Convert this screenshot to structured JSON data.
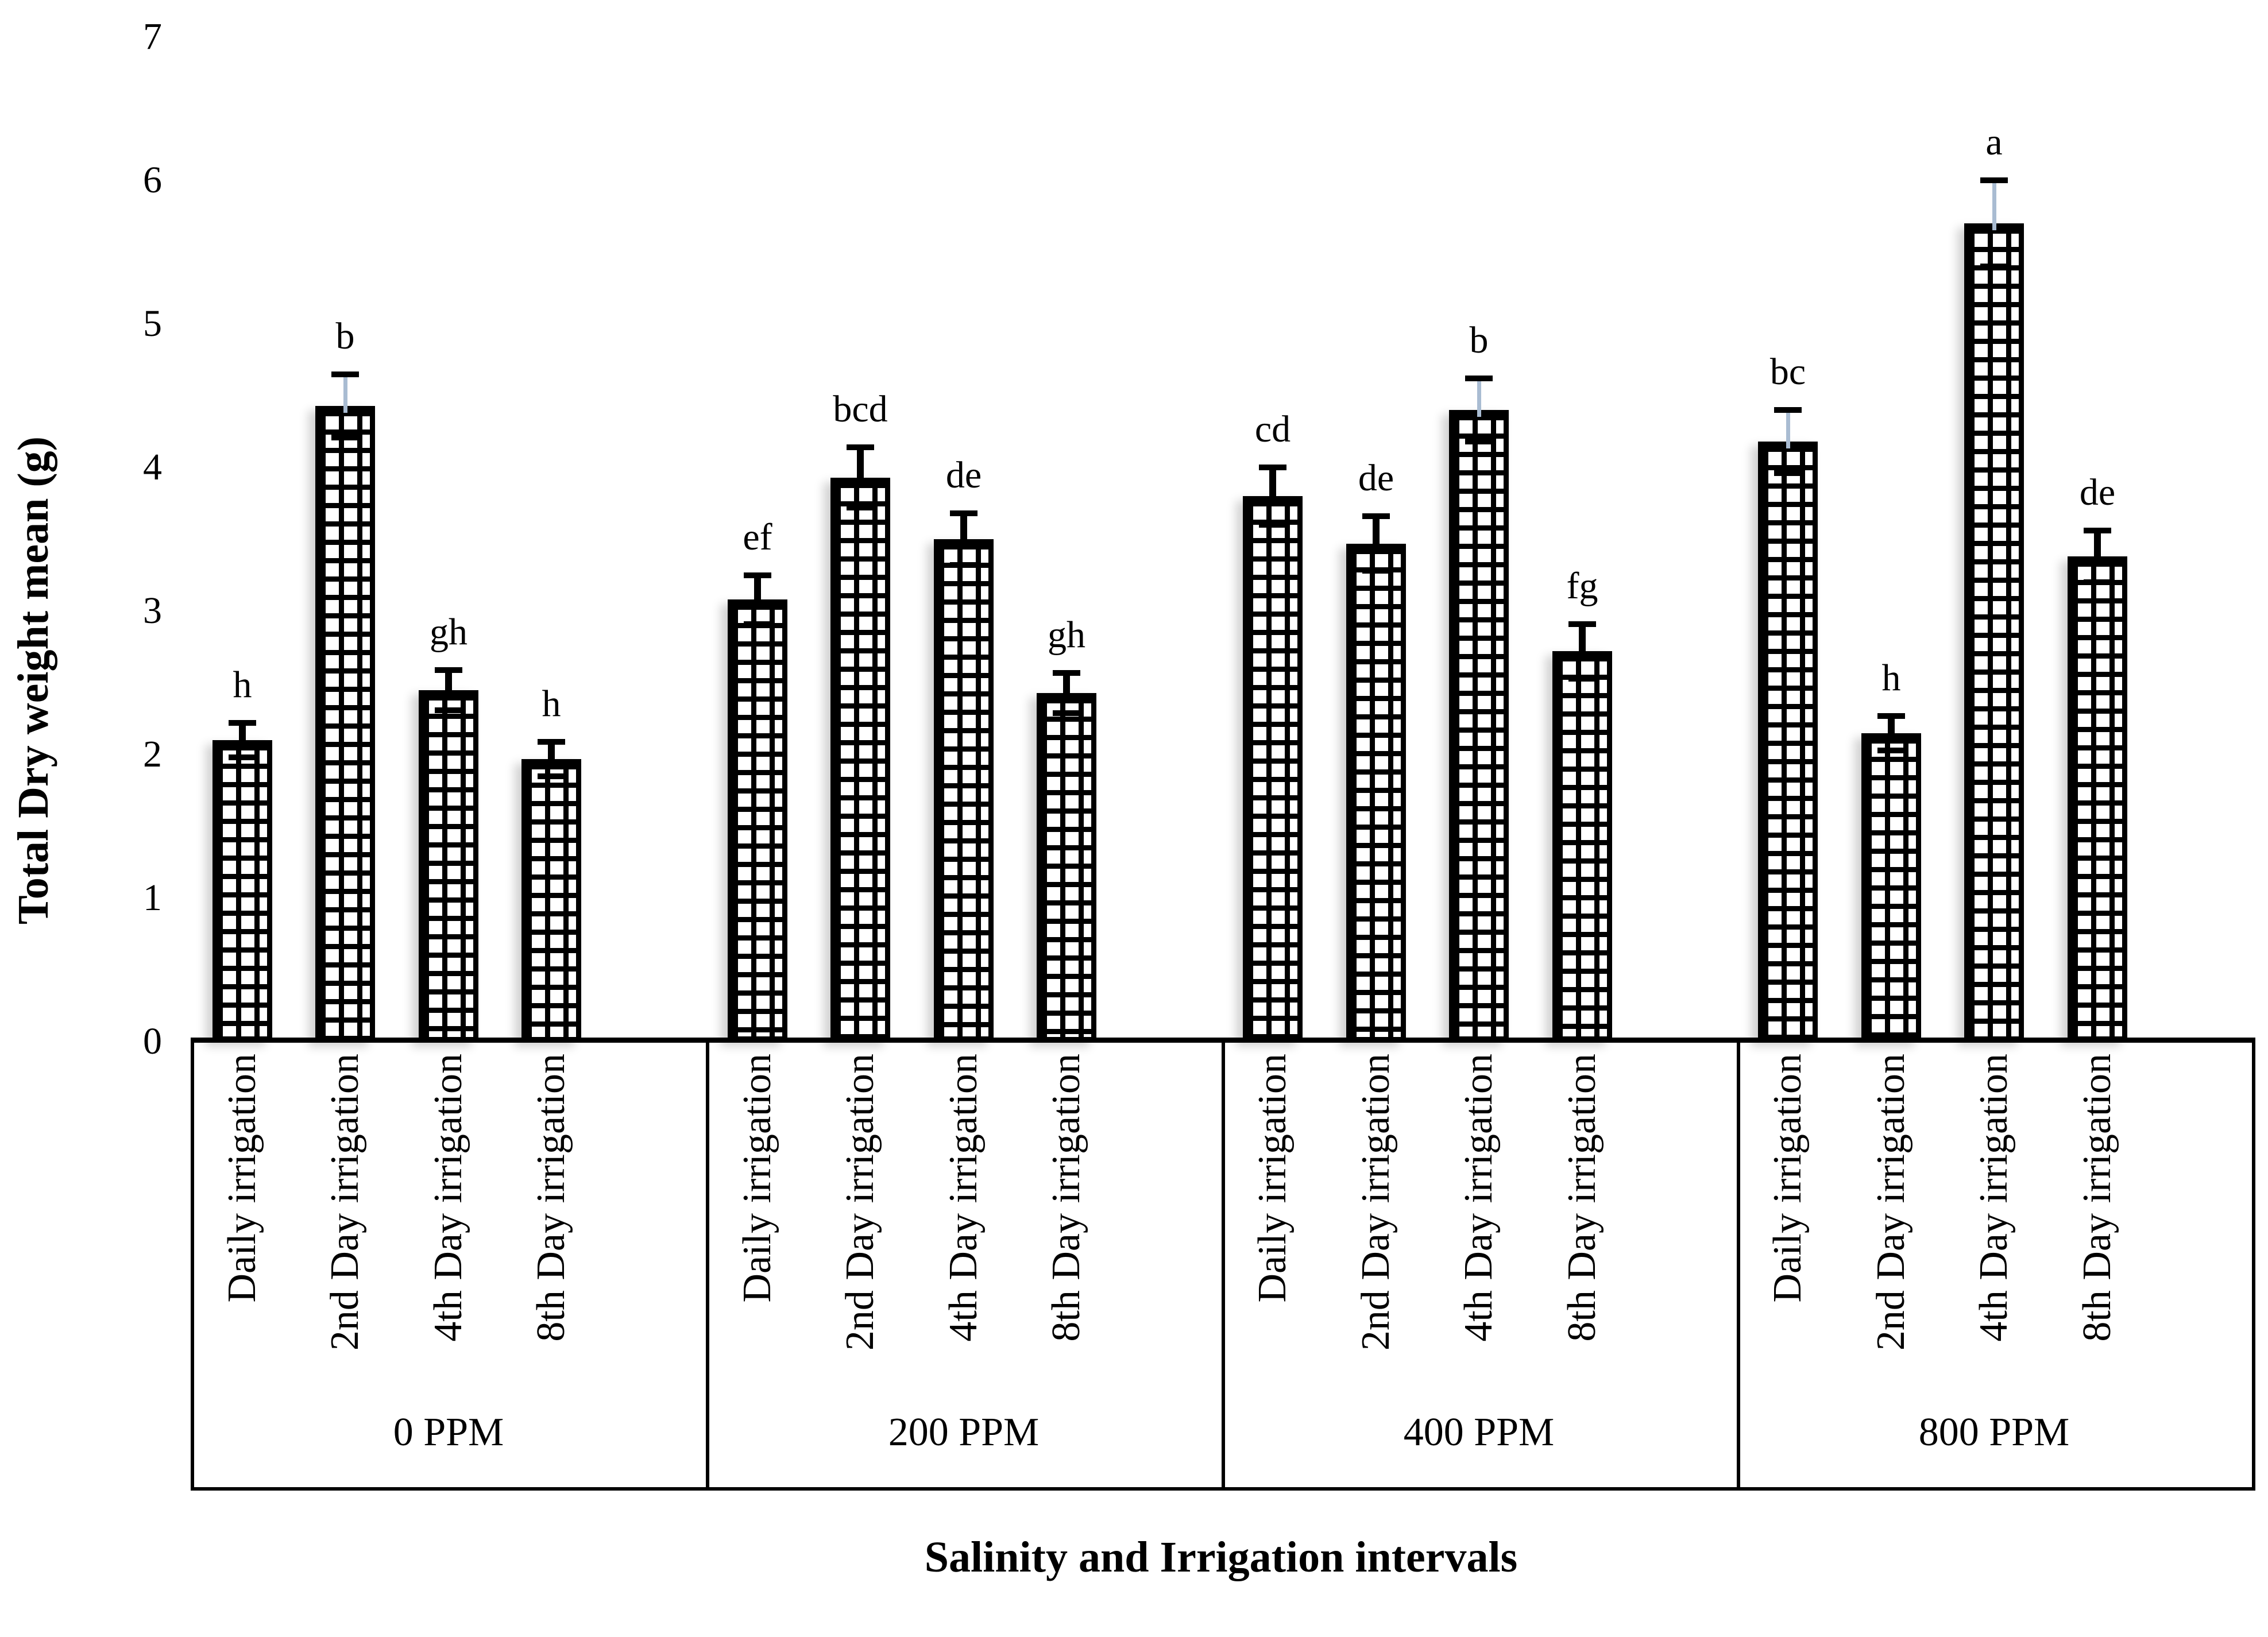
{
  "chart_data": {
    "type": "bar",
    "title": "",
    "ylabel": "Total Dry weight mean (g)",
    "xlabel": "Salinity and Irrigation intervals",
    "ylim": [
      0,
      7
    ],
    "yticks": [
      0,
      1,
      2,
      3,
      4,
      5,
      6,
      7
    ],
    "grid": false,
    "legend": false,
    "bar_categories": [
      "Daily irrigation",
      "2nd Day irrigation",
      "4th Day irrigation",
      "8th Day irrigation"
    ],
    "groups": [
      {
        "label": "0 PPM",
        "values": [
          2.1,
          4.43,
          2.45,
          1.97
        ],
        "errors": [
          0.1,
          0.2,
          0.12,
          0.1
        ],
        "letters": [
          "h",
          "b",
          "gh",
          "h"
        ],
        "whisker_styles": [
          "black",
          "blue",
          "black",
          "black"
        ]
      },
      {
        "label": "200 PPM",
        "values": [
          3.08,
          3.93,
          3.5,
          2.43
        ],
        "errors": [
          0.15,
          0.19,
          0.16,
          0.12
        ],
        "letters": [
          "ef",
          "bcd",
          "de",
          "gh"
        ],
        "whisker_styles": [
          "black",
          "black",
          "black",
          "black"
        ]
      },
      {
        "label": "400 PPM",
        "values": [
          3.8,
          3.47,
          4.4,
          2.72
        ],
        "errors": [
          0.18,
          0.17,
          0.2,
          0.17
        ],
        "letters": [
          "cd",
          "de",
          "b",
          "fg"
        ],
        "whisker_styles": [
          "black",
          "black",
          "blue",
          "black"
        ]
      },
      {
        "label": "800 PPM",
        "values": [
          4.18,
          2.15,
          5.7,
          3.38
        ],
        "errors": [
          0.2,
          0.1,
          0.28,
          0.16
        ],
        "letters": [
          "bc",
          "h",
          "a",
          "de"
        ],
        "whisker_styles": [
          "blue",
          "black",
          "blue",
          "black"
        ]
      }
    ],
    "styles": {
      "background": "#ffffff",
      "bar_fill": "#ffffff",
      "hatch_color": "#000000",
      "bar_border_color": "#000000",
      "error_cap_color": "#000000",
      "error_whisker_blue": "#a9bcd2",
      "error_whisker_black": "#000000",
      "text_color": "#000000"
    }
  }
}
